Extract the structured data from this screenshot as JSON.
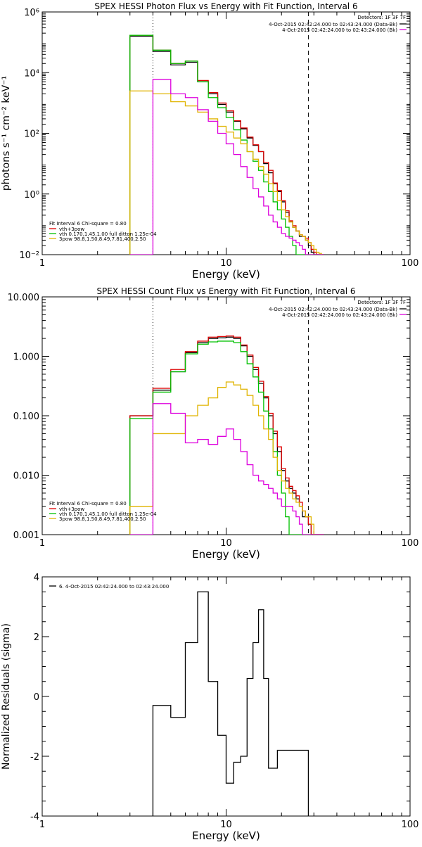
{
  "chart_data": [
    {
      "type": "line",
      "title": "SPEX HESSI Photon Flux vs Energy with Fit Function, Interval 6",
      "xlabel": "Energy (keV)",
      "ylabel": "photons s⁻¹ cm⁻² keV⁻¹",
      "x_scale": "log",
      "y_scale": "log",
      "xlim": [
        1,
        100
      ],
      "ylim": [
        0.01,
        1000000
      ],
      "x_ticks": [
        {
          "v": 1,
          "label": "1"
        },
        {
          "v": 10,
          "label": "10"
        },
        {
          "v": 100,
          "label": "100"
        }
      ],
      "y_ticks": [
        {
          "v": 0.01,
          "label": "10⁻²"
        },
        {
          "v": 1,
          "label": "10⁰"
        },
        {
          "v": 100,
          "label": "10²"
        },
        {
          "v": 10000,
          "label": "10⁴"
        },
        {
          "v": 1000000,
          "label": "10⁶"
        }
      ],
      "energy_edges": [
        3,
        4,
        5,
        6,
        7,
        8,
        9,
        10,
        11,
        12,
        13,
        14,
        15,
        16,
        17,
        18,
        19,
        20,
        21,
        22,
        23,
        24,
        25,
        26,
        27,
        28,
        29,
        30,
        31,
        32,
        33,
        34
      ],
      "vlines": [
        {
          "x": 4.0,
          "style": "dotted"
        },
        {
          "x": 28.0,
          "style": "dashed"
        }
      ],
      "series": [
        {
          "name": "4-Oct-2015 02:42:24.000 to 02:43:24.000 (Data-Bk)",
          "color": "#000000",
          "values": [
            160000,
            50000,
            18000,
            22000,
            5000,
            2000,
            900,
            500,
            250,
            140,
            70,
            40,
            25,
            10,
            5,
            2.2,
            1.2,
            0.55,
            0.25,
            0.12,
            0.08,
            0.06,
            0.04,
            0.04,
            0.03,
            0.02,
            0.012,
            0.01,
            0.01,
            0.01,
            0.01
          ]
        },
        {
          "name": "vth+3pow",
          "color": "#dd0000",
          "values": [
            170000,
            55000,
            20000,
            24000,
            5500,
            2200,
            1000,
            550,
            260,
            150,
            75,
            42,
            25,
            11,
            6,
            2.3,
            1.3,
            0.6,
            0.28,
            0.13,
            0.09,
            0.06,
            0.045,
            0.04,
            0.035,
            0.025,
            0.015,
            0.012,
            0.01,
            0.01,
            0.01
          ]
        },
        {
          "name": "vth 0.170,1.45,1.00  full ditton 1.25e-04",
          "color": "#00c000",
          "values": [
            170000,
            55000,
            20000,
            24000,
            5000,
            1500,
            700,
            330,
            130,
            60,
            25,
            12,
            6,
            2.5,
            1.2,
            0.55,
            0.3,
            0.15,
            0.08,
            0.04,
            0.02,
            0.01,
            0.01,
            0.01,
            0.01,
            0.01,
            0.01,
            0.01,
            0.01,
            0.01,
            0.01
          ]
        },
        {
          "name": "3pow 98.8,1.50,8.49,7.81,400,2.50",
          "color": "#e0b400",
          "values": [
            2500,
            2000,
            1100,
            800,
            500,
            300,
            170,
            110,
            70,
            45,
            25,
            14,
            8,
            4.5,
            2.2,
            1.2,
            0.6,
            0.3,
            0.18,
            0.12,
            0.08,
            0.06,
            0.045,
            0.04,
            0.03,
            0.025,
            0.02,
            0.015,
            0.012,
            0.011,
            0.01
          ]
        },
        {
          "name": "",
          "color": "#dd00dd",
          "values": [
            0.01,
            6000,
            2000,
            1500,
            600,
            250,
            100,
            45,
            20,
            8,
            3.5,
            1.5,
            0.8,
            0.4,
            0.2,
            0.12,
            0.08,
            0.05,
            0.04,
            0.035,
            0.03,
            0.025,
            0.02,
            0.015,
            0.01,
            0.01,
            0.01,
            0.01,
            0.01,
            0.01,
            0.01
          ]
        }
      ],
      "legend_right": {
        "title": "Detectors: 1F 3F 7F",
        "entries": [
          {
            "text": "4-Oct-2015 02:42:24.000 to 02:43:24.000 (Data-Bk)",
            "color": "#000000"
          },
          {
            "text": "4-Oct-2015 02:42:24.000 to 02:43:24.000 (Bk)",
            "color": "#dd00dd"
          }
        ]
      },
      "legend_left": {
        "title": "Fit Interval 6   Chi-square = 0.80",
        "entries": [
          {
            "text": "vth+3pow",
            "color": "#dd0000"
          },
          {
            "text": "vth 0.170,1.45,1.00  full ditton 1.25e-04",
            "color": "#00c000"
          },
          {
            "text": "3pow 98.8,1.50,8.49,7.81,400,2.50",
            "color": "#e0b400"
          }
        ]
      }
    },
    {
      "type": "line",
      "title": "SPEX HESSI Count Flux vs Energy with Fit Function, Interval 6",
      "xlabel": "Energy (keV)",
      "ylabel": "",
      "x_scale": "log",
      "y_scale": "log",
      "xlim": [
        1,
        100
      ],
      "ylim": [
        0.001,
        10
      ],
      "x_ticks": [
        {
          "v": 1,
          "label": "1"
        },
        {
          "v": 10,
          "label": "10"
        },
        {
          "v": 100,
          "label": "100"
        }
      ],
      "y_ticks": [
        {
          "v": 0.001,
          "label": "0.001"
        },
        {
          "v": 0.01,
          "label": "0.010"
        },
        {
          "v": 0.1,
          "label": "0.100"
        },
        {
          "v": 1,
          "label": "1.000"
        },
        {
          "v": 10,
          "label": "10.000"
        }
      ],
      "energy_edges": [
        3,
        4,
        5,
        6,
        7,
        8,
        9,
        10,
        11,
        12,
        13,
        14,
        15,
        16,
        17,
        18,
        19,
        20,
        21,
        22,
        23,
        24,
        25,
        26,
        27,
        28,
        29,
        30,
        31,
        32,
        33,
        34
      ],
      "vlines": [
        {
          "x": 4.0,
          "style": "dotted"
        },
        {
          "x": 28.0,
          "style": "dashed"
        }
      ],
      "series": [
        {
          "name": "Data-Bk",
          "color": "#000000",
          "values": [
            0.1,
            0.27,
            0.55,
            1.15,
            1.7,
            2.0,
            2.05,
            2.1,
            2.0,
            1.5,
            1.0,
            0.6,
            0.35,
            0.2,
            0.1,
            0.05,
            0.025,
            0.012,
            0.008,
            0.006,
            0.005,
            0.004,
            0.003,
            0.002,
            0.002,
            0.0015,
            0.001,
            0.001,
            0.001,
            0.001,
            0.001
          ]
        },
        {
          "name": "vth+3pow",
          "color": "#dd0000",
          "values": [
            0.1,
            0.29,
            0.6,
            1.2,
            1.8,
            2.1,
            2.15,
            2.2,
            2.1,
            1.55,
            1.05,
            0.65,
            0.38,
            0.21,
            0.11,
            0.055,
            0.03,
            0.013,
            0.009,
            0.0065,
            0.0055,
            0.0045,
            0.0035,
            0.0025,
            0.002,
            0.0015,
            0.001,
            0.001,
            0.001,
            0.001,
            0.001
          ]
        },
        {
          "name": "vth",
          "color": "#00c000",
          "values": [
            0.09,
            0.25,
            0.55,
            1.1,
            1.6,
            1.75,
            1.8,
            1.8,
            1.7,
            1.2,
            0.75,
            0.45,
            0.25,
            0.12,
            0.06,
            0.025,
            0.01,
            0.005,
            0.002,
            0.001,
            0.001,
            0.001,
            0.001,
            0.001,
            0.001,
            0.001,
            0.001,
            0.001,
            0.001,
            0.001,
            0.001
          ]
        },
        {
          "name": "3pow",
          "color": "#e0b400",
          "values": [
            0.003,
            0.05,
            0.05,
            0.1,
            0.15,
            0.2,
            0.3,
            0.37,
            0.33,
            0.28,
            0.22,
            0.15,
            0.1,
            0.06,
            0.04,
            0.02,
            0.012,
            0.008,
            0.006,
            0.005,
            0.004,
            0.0035,
            0.003,
            0.0025,
            0.002,
            0.002,
            0.0015,
            0.001,
            0.001,
            0.001,
            0.001
          ]
        },
        {
          "name": "Bk",
          "color": "#dd00dd",
          "values": [
            0.001,
            0.16,
            0.11,
            0.035,
            0.04,
            0.033,
            0.045,
            0.06,
            0.04,
            0.025,
            0.015,
            0.01,
            0.008,
            0.007,
            0.006,
            0.005,
            0.004,
            0.003,
            0.003,
            0.003,
            0.0025,
            0.002,
            0.0015,
            0.001,
            0.001,
            0.001,
            0.001,
            0.001,
            0.001,
            0.001,
            0.001
          ]
        }
      ],
      "legend_right": {
        "title": "Detectors: 1F 3F 7F",
        "entries": [
          {
            "text": "4-Oct-2015 02:42:24.000 to 02:43:24.000 (Data-Bk)",
            "color": "#000000"
          },
          {
            "text": "4-Oct-2015 02:42:24.000 to 02:43:24.000 (Bk)",
            "color": "#dd00dd"
          }
        ]
      },
      "legend_left": {
        "title": "Fit Interval 6   Chi-square = 0.80",
        "entries": [
          {
            "text": "vth+3pow",
            "color": "#dd0000"
          },
          {
            "text": "vth 0.170,1.45,1.00  full ditton 1.25e-04",
            "color": "#00c000"
          },
          {
            "text": "3pow 98.8,1.50,8.49,7.81,400,2.50",
            "color": "#e0b400"
          }
        ]
      }
    },
    {
      "type": "line",
      "title": "",
      "xlabel": "Energy (keV)",
      "ylabel": "Normalized Residuals (sigma)",
      "x_scale": "log",
      "y_scale": "linear",
      "xlim": [
        1,
        100
      ],
      "ylim": [
        -4,
        4
      ],
      "x_ticks": [
        {
          "v": 1,
          "label": "1"
        },
        {
          "v": 10,
          "label": "10"
        },
        {
          "v": 100,
          "label": "100"
        }
      ],
      "y_ticks": [
        {
          "v": -4,
          "label": "-4"
        },
        {
          "v": -2,
          "label": "-2"
        },
        {
          "v": 0,
          "label": "0"
        },
        {
          "v": 2,
          "label": "2"
        },
        {
          "v": 4,
          "label": "4"
        }
      ],
      "energy_edges": [
        4,
        5,
        6,
        7,
        8,
        9,
        10,
        11,
        12,
        13,
        14,
        15,
        16,
        17,
        18,
        19,
        20,
        21,
        22,
        23,
        24,
        25,
        26,
        27,
        28
      ],
      "series": [
        {
          "name": "6. 4-Oct-2015 02:42:24.000 to 02:43:24.000",
          "color": "#000000",
          "values": [
            -0.3,
            -0.7,
            1.8,
            3.5,
            0.5,
            -1.3,
            -2.9,
            -2.2,
            -2.0,
            0.6,
            1.8,
            2.9,
            0.6,
            -2.4,
            -2.4,
            -1.8,
            -1.8,
            -1.8,
            -1.8,
            -1.8,
            -1.8,
            -1.8,
            -1.8,
            -1.8
          ]
        }
      ],
      "legend_left": {
        "title": "",
        "entries": [
          {
            "text": "6. 4-Oct-2015 02:42:24.000 to 02:43:24.000",
            "color": "#000000"
          }
        ]
      }
    }
  ]
}
